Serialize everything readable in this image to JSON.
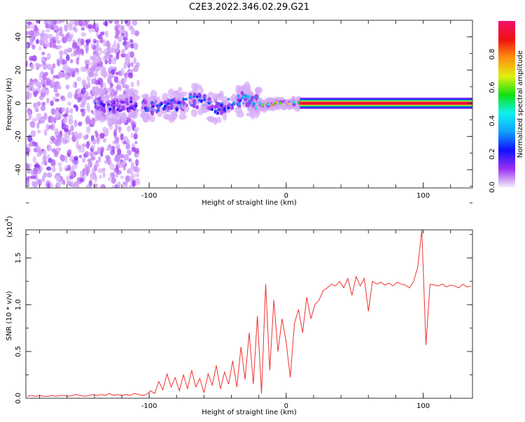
{
  "title": "C2E3.2022.346.02.29.G21",
  "chart_data": [
    {
      "type": "heatmap",
      "name": "spectrogram",
      "xlabel": "Height of straight line (km)",
      "ylabel": "Frequency (Hz)",
      "xlim": [
        -190,
        136
      ],
      "ylim": [
        -51,
        50
      ],
      "xticks": [
        -100,
        0,
        100
      ],
      "xtick_labels": [
        "-100",
        "0",
        "100"
      ],
      "yticks": [
        -40,
        -20,
        0,
        20,
        40
      ],
      "ytick_labels": [
        "-40",
        "-20",
        "0",
        "20",
        "40"
      ],
      "colorbar": {
        "label": "Normalized spectral amplitude",
        "range": [
          0,
          1
        ],
        "ticks": [
          0.0,
          0.2,
          0.4,
          0.6,
          0.8
        ],
        "tick_labels": [
          "0.0",
          "0.2",
          "0.4",
          "0.6",
          "0.8"
        ],
        "colors": [
          "#f4eefc",
          "#9a30f0",
          "#1010ff",
          "#10a0ff",
          "#10f0f0",
          "#10e010",
          "#e0f010",
          "#ff9010",
          "#f01010",
          "#f0106a"
        ]
      },
      "noise_region_km": [
        -190,
        -108
      ],
      "ridge": [
        [
          -140,
          0,
          0.2
        ],
        [
          -130,
          -3,
          0.22
        ],
        [
          -120,
          -1,
          0.18
        ],
        [
          -110,
          0,
          0.2
        ],
        [
          -100,
          -2,
          0.28
        ],
        [
          -90,
          -2,
          0.3
        ],
        [
          -80,
          -1,
          0.3
        ],
        [
          -70,
          2,
          0.32
        ],
        [
          -60,
          1,
          0.3
        ],
        [
          -50,
          -3,
          0.3
        ],
        [
          -40,
          0,
          0.32
        ],
        [
          -30,
          3,
          0.35
        ],
        [
          -25,
          1,
          0.4
        ],
        [
          -20,
          0,
          0.6
        ],
        [
          -15,
          -1,
          0.7
        ],
        [
          -10,
          0,
          0.8
        ],
        [
          -5,
          0,
          0.75
        ],
        [
          0,
          0,
          0.85
        ],
        [
          5,
          0,
          0.6
        ],
        [
          10,
          0,
          0.6
        ]
      ],
      "carrier": {
        "from_km": 10,
        "to_km": 136,
        "freq_hz": 0,
        "amplitude": 0.95
      }
    },
    {
      "type": "line",
      "name": "snr",
      "xlabel": "Height of straight line (km)",
      "ylabel": "SNR (10 * v/v)",
      "yscale_label": "(x10",
      "yscale_exp": "4",
      "xlim": [
        -190,
        136
      ],
      "ylim": [
        0,
        1.8
      ],
      "xticks": [
        -100,
        0,
        100
      ],
      "xtick_labels": [
        "-100",
        "0",
        "100"
      ],
      "yticks": [
        0,
        0.5,
        1.0,
        1.5
      ],
      "ytick_labels": [
        "0.0",
        "0.5",
        "1.0",
        "1.5"
      ],
      "color": "#f03030",
      "x_start": -189,
      "x_step": 3,
      "values": [
        0.02,
        0.03,
        0.02,
        0.03,
        0.02,
        0.02,
        0.03,
        0.02,
        0.03,
        0.03,
        0.02,
        0.03,
        0.04,
        0.03,
        0.02,
        0.03,
        0.04,
        0.03,
        0.04,
        0.03,
        0.05,
        0.03,
        0.04,
        0.03,
        0.04,
        0.03,
        0.05,
        0.04,
        0.03,
        0.04,
        0.08,
        0.05,
        0.18,
        0.09,
        0.26,
        0.12,
        0.22,
        0.08,
        0.25,
        0.1,
        0.3,
        0.12,
        0.21,
        0.06,
        0.26,
        0.14,
        0.35,
        0.1,
        0.28,
        0.15,
        0.4,
        0.12,
        0.55,
        0.2,
        0.7,
        0.15,
        0.88,
        0.05,
        1.22,
        0.3,
        1.05,
        0.5,
        0.85,
        0.6,
        0.22,
        0.8,
        0.95,
        0.7,
        1.08,
        0.85,
        1.0,
        1.05,
        1.15,
        1.18,
        1.22,
        1.2,
        1.25,
        1.18,
        1.28,
        1.1,
        1.3,
        1.2,
        1.28,
        0.93,
        1.25,
        1.22,
        1.24,
        1.21,
        1.23,
        1.2,
        1.24,
        1.22,
        1.21,
        1.18,
        1.25,
        1.4,
        1.8,
        0.57,
        1.22,
        1.21,
        1.2,
        1.22,
        1.19,
        1.21,
        1.2,
        1.18,
        1.22,
        1.19,
        1.2
      ]
    }
  ]
}
